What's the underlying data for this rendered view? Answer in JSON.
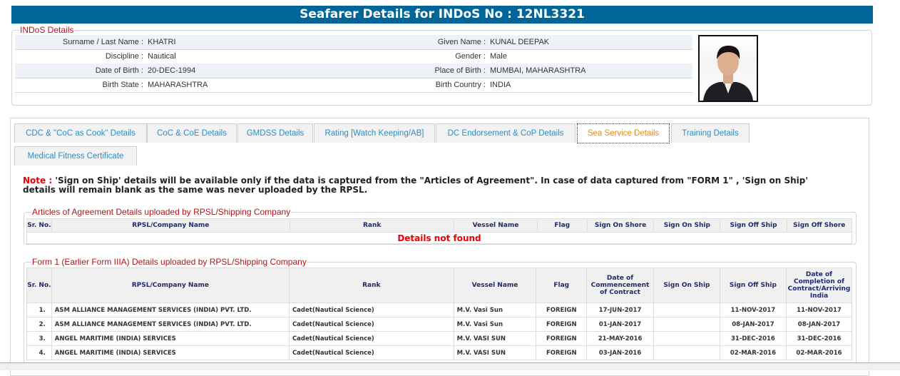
{
  "title": "Seafarer Details for INDoS No : 12NL3321",
  "indos": {
    "legend": "INDoS Details",
    "rows": [
      {
        "l1": "Surname / Last Name :",
        "v1": "KHATRI",
        "l2": "Given Name :",
        "v2": "KUNAL DEEPAK"
      },
      {
        "l1": "Discipline :",
        "v1": "Nautical",
        "l2": "Gender :",
        "v2": "Male"
      },
      {
        "l1": "Date of Birth :",
        "v1": "20-DEC-1994",
        "l2": "Place of Birth :",
        "v2": "MUMBAI, MAHARASHTRA"
      },
      {
        "l1": "Birth State :",
        "v1": "MAHARASHTRA",
        "l2": "Birth Country :",
        "v2": "INDIA"
      }
    ]
  },
  "tabs": [
    "CDC & \"CoC as Cook\" Details",
    "CoC & CoE Details",
    "GMDSS Details",
    "Rating [Watch Keeping/AB]",
    "DC Endorsement & CoP Details",
    "Sea Service Details",
    "Training Details",
    "Medical Fitness Certificate"
  ],
  "active_tab": "Sea Service Details",
  "note": {
    "label": "Note :",
    "text": " 'Sign on Ship' details will be available only if the data is captured from the \"Articles of Agreement\". In case of data captured from \"FORM 1\" , 'Sign on Ship' details will remain blank as the same was never uploaded by the RPSL."
  },
  "articles": {
    "legend": "Articles of Agreement Details uploaded by RPSL/Shipping Company",
    "headers": [
      "Sr. No.",
      "RPSL/Company Name",
      "Rank",
      "Vessel Name",
      "Flag",
      "Sign On Shore",
      "Sign On Ship",
      "Sign Off Ship",
      "Sign Off Shore"
    ],
    "empty": "Details not found"
  },
  "form1": {
    "legend": "Form 1 (Earlier Form IIIA) Details uploaded by RPSL/Shipping Company",
    "headers": [
      "Sr. No.",
      "RPSL/Company Name",
      "Rank",
      "Vessel Name",
      "Flag",
      "Date of Commencement of Contract",
      "Sign On Ship",
      "Sign Off Ship",
      "Date of Completion of Contract/Arriving India"
    ],
    "rows": [
      [
        "1.",
        "ASM ALLIANCE MANAGEMENT SERVICES (INDIA) PVT. LTD.",
        "Cadet(Nautical Science)",
        "M.V. Vasi Sun",
        "FOREIGN",
        "17-JUN-2017",
        "",
        "11-NOV-2017",
        "11-NOV-2017"
      ],
      [
        "2.",
        "ASM ALLIANCE MANAGEMENT SERVICES (INDIA) PVT. LTD.",
        "Cadet(Nautical Science)",
        "M.V. Vasi Sun",
        "FOREIGN",
        "01-JAN-2017",
        "",
        "08-JAN-2017",
        "08-JAN-2017"
      ],
      [
        "3.",
        "ANGEL MARITIME (INDIA) SERVICES",
        "Cadet(Nautical Science)",
        "M.V. VASI SUN",
        "FOREIGN",
        "21-MAY-2016",
        "",
        "31-DEC-2016",
        "31-DEC-2016"
      ],
      [
        "4.",
        "ANGEL MARITIME (INDIA) SERVICES",
        "Cadet(Nautical Science)",
        "M.V. VASI SUN",
        "FOREIGN",
        "03-JAN-2016",
        "",
        "02-MAR-2016",
        "02-MAR-2016"
      ]
    ]
  }
}
